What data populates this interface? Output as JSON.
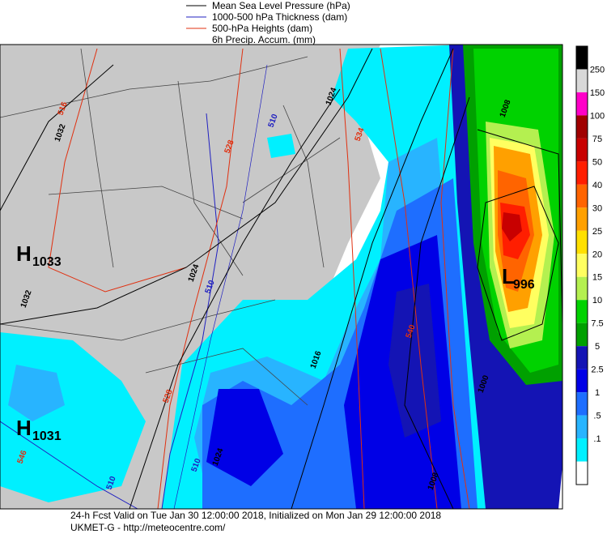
{
  "legend": [
    {
      "text": "Mean Sea Level Pressure (hPa)",
      "color": "#000000"
    },
    {
      "text": "1000-500 hPa Thickness (dam)",
      "color": "#2020c0"
    },
    {
      "text": "500-hPa Heights (dam)",
      "color": "#e03010"
    },
    {
      "text": "6h Precip. Accum. (mm)",
      "color": null
    }
  ],
  "colorbar": {
    "top_color": "#000000",
    "levels": [
      {
        "label": "250",
        "color": "#d8d8d8"
      },
      {
        "label": "150",
        "color": "#ff00c8"
      },
      {
        "label": "100",
        "color": "#a00000"
      },
      {
        "label": "75",
        "color": "#c80000"
      },
      {
        "label": "50",
        "color": "#ff1e00"
      },
      {
        "label": "40",
        "color": "#ff6400"
      },
      {
        "label": "30",
        "color": "#ffa000"
      },
      {
        "label": "25",
        "color": "#ffe000"
      },
      {
        "label": "20",
        "color": "#ffff60"
      },
      {
        "label": "15",
        "color": "#b4f050"
      },
      {
        "label": "10",
        "color": "#00d200"
      },
      {
        "label": "7.5",
        "color": "#00a000"
      },
      {
        "label": "5",
        "color": "#1414b4"
      },
      {
        "label": "2.5",
        "color": "#0000e6"
      },
      {
        "label": "1",
        "color": "#1e6eff"
      },
      {
        "label": ".5",
        "color": "#28b4ff"
      },
      {
        "label": ".1",
        "color": "#00f0ff"
      }
    ],
    "bottom_color": "#ffffff"
  },
  "centers": [
    {
      "letter": "H",
      "value": "1033"
    },
    {
      "letter": "H",
      "value": "1031"
    },
    {
      "letter": "L",
      "value": "996"
    }
  ],
  "contour_labels": [
    {
      "text": "516",
      "color": "#e03010"
    },
    {
      "text": "1032",
      "color": "#000000"
    },
    {
      "text": "1032",
      "color": "#000000"
    },
    {
      "text": "510",
      "color": "#2020c0"
    },
    {
      "text": "528",
      "color": "#e03010"
    },
    {
      "text": "1024",
      "color": "#000000"
    },
    {
      "text": "534",
      "color": "#e03010"
    },
    {
      "text": "1008",
      "color": "#000000"
    },
    {
      "text": "1024",
      "color": "#000000"
    },
    {
      "text": "510",
      "color": "#2020c0"
    },
    {
      "text": "1016",
      "color": "#000000"
    },
    {
      "text": "540",
      "color": "#e03010"
    },
    {
      "text": "528",
      "color": "#e03010"
    },
    {
      "text": "1000",
      "color": "#000000"
    },
    {
      "text": "510",
      "color": "#2020c0"
    },
    {
      "text": "510",
      "color": "#2020c0"
    },
    {
      "text": "1024",
      "color": "#000000"
    },
    {
      "text": "1008",
      "color": "#000000"
    },
    {
      "text": "546",
      "color": "#e03010"
    }
  ],
  "footer": [
    "24-h Fcst Valid on Tue Jan 30 12:00:00 2018, Initialized on Mon Jan 29 12:00:00 2018",
    "UKMET-G  - http://meteocentre.com/"
  ]
}
